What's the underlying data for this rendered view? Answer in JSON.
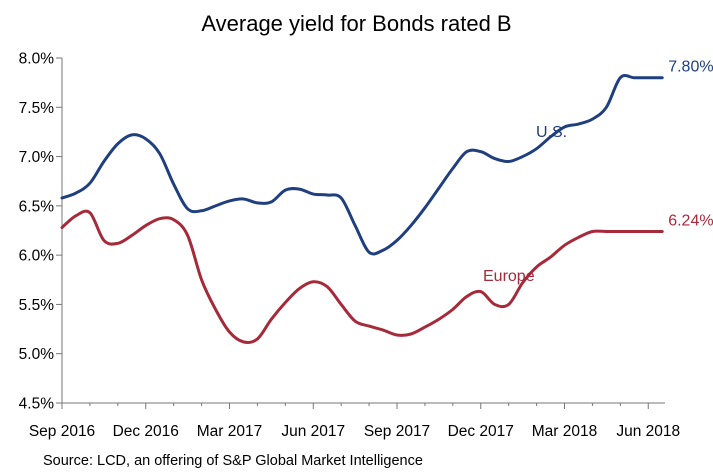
{
  "chart_data": {
    "type": "line",
    "title": "Average yield for Bonds rated B",
    "source": "Source: LCD, an offering of S&P Global Market Intelligence",
    "y_ticks": [
      "8.0%",
      "7.5%",
      "7.0%",
      "6.5%",
      "6.0%",
      "5.5%",
      "5.0%",
      "4.5%"
    ],
    "y_tick_values": [
      8.0,
      7.5,
      7.0,
      6.5,
      6.0,
      5.5,
      5.0,
      4.5
    ],
    "x_ticks": [
      "Sep 2016",
      "Dec 2016",
      "Mar 2017",
      "Jun 2017",
      "Sep 2017",
      "Dec 2017",
      "Mar 2018",
      "Jun 2018"
    ],
    "ylim": [
      4.5,
      8.0
    ],
    "xlim": [
      0,
      21.6
    ],
    "grid": false,
    "series": [
      {
        "name": "U.S.",
        "color": "#1f3f7f",
        "end_label": "7.80%",
        "x": [
          0,
          0.5,
          1.0,
          1.5,
          2.0,
          2.5,
          3.0,
          3.5,
          4.0,
          4.5,
          5.0,
          5.5,
          6.0,
          6.5,
          7.0,
          7.5,
          8.0,
          8.5,
          9.0,
          9.5,
          10.0,
          10.5,
          11.0,
          11.5,
          12.0,
          12.5,
          13.0,
          13.5,
          14.0,
          14.5,
          15.0,
          15.5,
          16.0,
          16.5,
          17.0,
          17.5,
          18.0,
          18.5,
          19.0,
          19.5,
          20.0,
          20.5,
          21.0,
          21.5
        ],
        "values": [
          6.58,
          6.63,
          6.73,
          6.95,
          7.13,
          7.22,
          7.18,
          7.03,
          6.72,
          6.47,
          6.45,
          6.5,
          6.55,
          6.57,
          6.53,
          6.54,
          6.66,
          6.67,
          6.62,
          6.61,
          6.58,
          6.3,
          6.03,
          6.05,
          6.15,
          6.3,
          6.48,
          6.68,
          6.88,
          7.05,
          7.05,
          6.98,
          6.95,
          7.0,
          7.08,
          7.2,
          7.3,
          7.33,
          7.38,
          7.5,
          7.8,
          7.8,
          7.8,
          7.8
        ]
      },
      {
        "name": "Europe",
        "color": "#a52a3a",
        "end_label": "6.24%",
        "x": [
          0,
          0.5,
          1.0,
          1.5,
          2.0,
          2.5,
          3.0,
          3.5,
          4.0,
          4.5,
          5.0,
          5.5,
          6.0,
          6.5,
          7.0,
          7.5,
          8.0,
          8.5,
          9.0,
          9.5,
          10.0,
          10.5,
          11.0,
          11.5,
          12.0,
          12.5,
          13.0,
          13.5,
          14.0,
          14.5,
          15.0,
          15.5,
          16.0,
          16.5,
          17.0,
          17.5,
          18.0,
          18.5,
          19.0,
          19.5,
          20.0,
          20.5,
          21.0,
          21.5
        ],
        "values": [
          6.28,
          6.4,
          6.43,
          6.15,
          6.12,
          6.2,
          6.3,
          6.37,
          6.36,
          6.2,
          5.75,
          5.45,
          5.22,
          5.12,
          5.15,
          5.35,
          5.52,
          5.66,
          5.73,
          5.68,
          5.5,
          5.33,
          5.28,
          5.24,
          5.19,
          5.2,
          5.27,
          5.35,
          5.45,
          5.58,
          5.63,
          5.5,
          5.5,
          5.72,
          5.88,
          5.98,
          6.1,
          6.18,
          6.24,
          6.24,
          6.24,
          6.24,
          6.24,
          6.24
        ]
      }
    ]
  }
}
